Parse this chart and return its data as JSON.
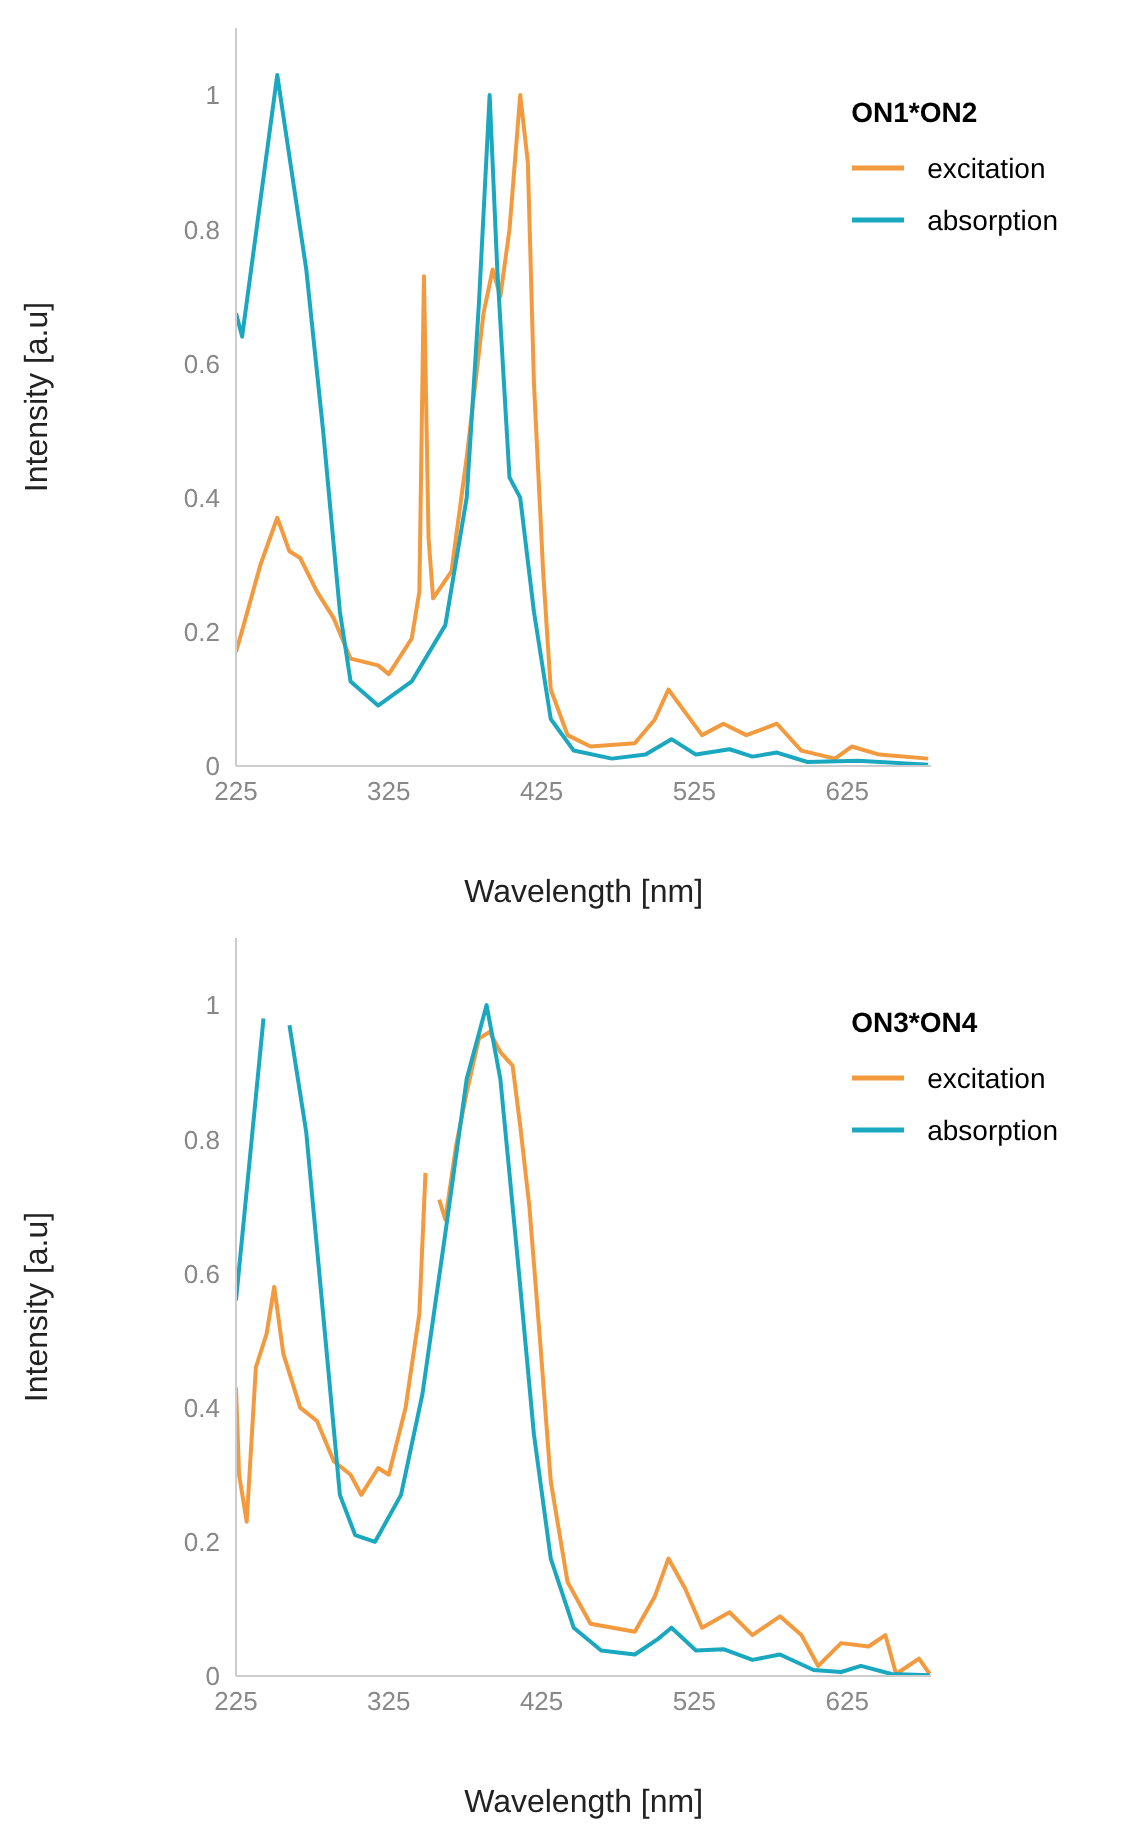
{
  "chart_data": [
    {
      "type": "line",
      "xlabel": "Wavelength [nm]",
      "ylabel": "Intensity [a.u]",
      "legend_title": "ON1*ON2",
      "legend": "top right",
      "xlim": [
        225,
        680
      ],
      "xticks": [
        225,
        325,
        425,
        525,
        625
      ],
      "ylim": [
        0,
        1.1
      ],
      "yticks": [
        0,
        0.2,
        0.4,
        0.6,
        0.8,
        1
      ],
      "series": [
        {
          "name": "excitation",
          "color": "#f39a3e",
          "x": [
            225,
            230,
            241,
            252,
            260,
            267,
            278,
            289,
            300,
            318,
            325,
            340,
            345,
            348,
            351,
            354,
            366,
            376,
            387,
            393,
            398,
            404,
            411,
            416,
            420,
            426,
            431,
            442,
            457,
            486,
            499,
            508,
            519,
            530,
            544,
            559,
            579,
            595,
            617,
            628,
            646,
            678
          ],
          "values": [
            0.17,
            0.21,
            0.3,
            0.37,
            0.32,
            0.31,
            0.26,
            0.22,
            0.16,
            0.15,
            0.137,
            0.19,
            0.26,
            0.73,
            0.34,
            0.25,
            0.29,
            0.46,
            0.675,
            0.74,
            0.7,
            0.8,
            1.0,
            0.9,
            0.57,
            0.29,
            0.114,
            0.046,
            0.029,
            0.034,
            0.069,
            0.114,
            0.08,
            0.046,
            0.063,
            0.046,
            0.063,
            0.023,
            0.011,
            0.029,
            0.017,
            0.011
          ]
        },
        {
          "name": "absorption",
          "color": "#1aa7c0",
          "x": [
            225,
            229,
            252,
            271,
            282,
            293,
            300,
            318,
            340,
            362,
            376,
            384,
            391,
            396,
            404,
            411,
            420,
            431,
            446,
            471,
            493,
            510,
            526,
            548,
            563,
            579,
            599,
            632,
            678
          ],
          "values": [
            0.675,
            0.64,
            1.03,
            0.74,
            0.5,
            0.23,
            0.126,
            0.09,
            0.126,
            0.21,
            0.4,
            0.69,
            1.0,
            0.74,
            0.43,
            0.4,
            0.23,
            0.07,
            0.023,
            0.011,
            0.017,
            0.04,
            0.017,
            0.025,
            0.014,
            0.02,
            0.006,
            0.008,
            0.002
          ]
        }
      ]
    },
    {
      "type": "line",
      "xlabel": "Wavelength [nm]",
      "ylabel": "Intensity [a.u]",
      "legend_title": "ON3*ON4",
      "legend": "top right",
      "xlim": [
        225,
        680
      ],
      "xticks": [
        225,
        325,
        425,
        525,
        625
      ],
      "ylim": [
        0,
        1.1
      ],
      "yticks": [
        0,
        0.2,
        0.4,
        0.6,
        0.8,
        1
      ],
      "series": [
        {
          "name": "excitation",
          "color": "#f39a3e",
          "x": [
            225,
            227,
            232,
            238,
            245,
            250,
            256,
            267,
            278,
            289,
            300,
            307,
            318,
            325,
            336,
            345,
            349,
            352,
            355,
            358,
            362,
            369,
            376,
            384,
            391,
            398,
            406,
            411,
            417,
            424,
            431,
            442,
            457,
            486,
            499,
            508,
            519,
            530,
            548,
            563,
            581,
            595,
            606,
            621,
            639,
            650,
            657,
            672,
            679
          ],
          "values": [
            0.43,
            0.3,
            0.23,
            0.46,
            0.51,
            0.58,
            0.48,
            0.4,
            0.38,
            0.32,
            0.3,
            0.27,
            0.31,
            0.3,
            0.4,
            0.54,
            0.75,
            null,
            null,
            0.71,
            0.68,
            0.79,
            0.87,
            0.95,
            0.96,
            0.93,
            0.91,
            0.82,
            0.7,
            0.5,
            0.29,
            0.14,
            0.078,
            0.066,
            0.118,
            0.175,
            0.13,
            0.072,
            0.095,
            0.061,
            0.089,
            0.061,
            0.015,
            0.049,
            0.044,
            0.061,
            0.003,
            0.026,
            0.003
          ]
        },
        {
          "name": "absorption",
          "color": "#1aa7c0",
          "x": [
            225,
            234,
            243,
            252,
            260,
            271,
            282,
            293,
            303,
            316,
            333,
            347,
            362,
            376,
            389,
            398,
            409,
            420,
            431,
            446,
            464,
            486,
            501,
            510,
            526,
            544,
            563,
            581,
            603,
            621,
            634,
            654,
            679
          ],
          "values": [
            0.56,
            0.77,
            0.98,
            null,
            0.97,
            0.81,
            0.54,
            0.27,
            0.21,
            0.2,
            0.27,
            0.42,
            0.66,
            0.89,
            1.0,
            0.89,
            0.63,
            0.36,
            0.175,
            0.072,
            0.038,
            0.032,
            0.055,
            0.072,
            0.038,
            0.04,
            0.024,
            0.032,
            0.009,
            0.006,
            0.015,
            0.003,
            0.001
          ]
        }
      ]
    }
  ]
}
